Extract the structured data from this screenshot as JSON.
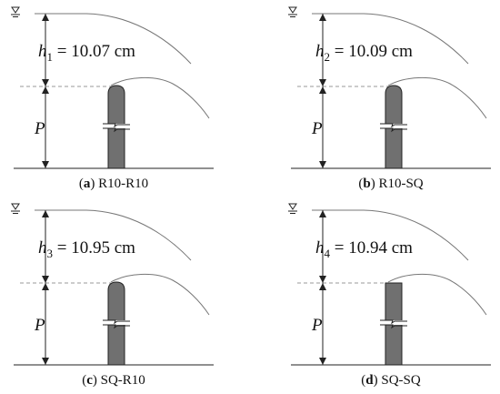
{
  "panels": [
    {
      "id": "a",
      "h_symbol": "h",
      "h_sub": "1",
      "h_value": "10.07 cm",
      "p_label": "P",
      "caption_letter": "a",
      "caption_text": "R10-R10",
      "crest_type": "rounded",
      "upstream_face": "rounded"
    },
    {
      "id": "b",
      "h_symbol": "h",
      "h_sub": "2",
      "h_value": "10.09 cm",
      "p_label": "P",
      "caption_letter": "b",
      "caption_text": "R10-SQ",
      "crest_type": "rounded",
      "upstream_face": "square"
    },
    {
      "id": "c",
      "h_symbol": "h",
      "h_sub": "3",
      "h_value": "10.95 cm",
      "p_label": "P",
      "caption_letter": "c",
      "caption_text": "SQ-R10",
      "crest_type": "rounded",
      "upstream_face": "square"
    },
    {
      "id": "d",
      "h_symbol": "h",
      "h_sub": "4",
      "h_value": "10.94 cm",
      "p_label": "P",
      "caption_letter": "d",
      "caption_text": "SQ-SQ",
      "crest_type": "square",
      "upstream_face": "square"
    }
  ],
  "colors": {
    "weir_fill": "#707070",
    "line": "#222222",
    "curve": "#777777",
    "dashed": "#999999"
  },
  "icons": {
    "water_surface": "water-level-triangle-icon"
  }
}
